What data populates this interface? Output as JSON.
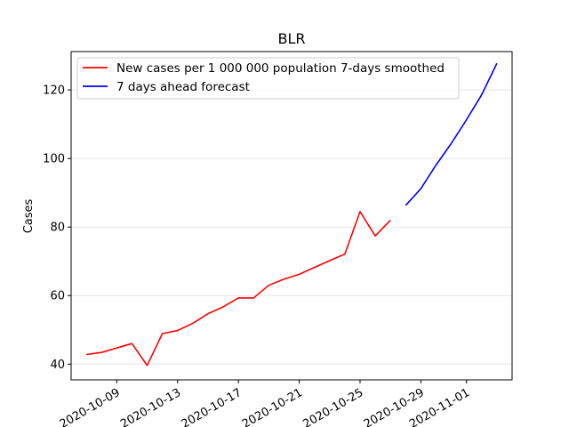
{
  "chart_data": {
    "type": "line",
    "title": "BLR",
    "xlabel": "",
    "ylabel": "Cases",
    "ylim": [
      35.4,
      131.2
    ],
    "xlim": [
      "2020-10-06",
      "2020-11-04"
    ],
    "grid": "horizontal",
    "legend_position": "top-left",
    "x_ticks": [
      "2020-10-09",
      "2020-10-13",
      "2020-10-17",
      "2020-10-21",
      "2020-10-25",
      "2020-10-29",
      "2020-11-01"
    ],
    "y_ticks": [
      40,
      60,
      80,
      100,
      120
    ],
    "series": [
      {
        "name": "New cases per 1 000 000 population 7-days smoothed",
        "color": "#ff0000",
        "x": [
          "2020-10-07",
          "2020-10-08",
          "2020-10-09",
          "2020-10-10",
          "2020-10-11",
          "2020-10-12",
          "2020-10-13",
          "2020-10-14",
          "2020-10-15",
          "2020-10-16",
          "2020-10-17",
          "2020-10-18",
          "2020-10-19",
          "2020-10-20",
          "2020-10-21",
          "2020-10-22",
          "2020-10-23",
          "2020-10-24",
          "2020-10-25",
          "2020-10-26",
          "2020-10-27"
        ],
        "y": [
          42.8,
          43.4,
          44.7,
          46.0,
          39.6,
          48.9,
          49.8,
          51.9,
          54.7,
          56.7,
          59.3,
          59.3,
          63.0,
          64.8,
          66.2,
          68.2,
          70.2,
          72.1,
          84.5,
          77.4,
          82.0
        ]
      },
      {
        "name": "7 days ahead forecast",
        "color": "#0000ff",
        "x": [
          "2020-10-28",
          "2020-10-29",
          "2020-10-30",
          "2020-10-31",
          "2020-11-01",
          "2020-11-02",
          "2020-11-03"
        ],
        "y": [
          86.3,
          91.2,
          98.1,
          104.4,
          111.3,
          118.6,
          127.8
        ]
      }
    ]
  }
}
